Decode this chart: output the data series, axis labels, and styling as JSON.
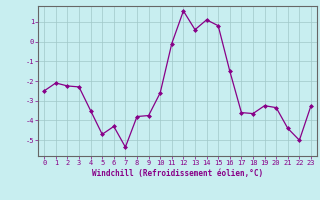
{
  "x": [
    0,
    1,
    2,
    3,
    4,
    5,
    6,
    7,
    8,
    9,
    10,
    11,
    12,
    13,
    14,
    15,
    16,
    17,
    18,
    19,
    20,
    21,
    22,
    23
  ],
  "y": [
    -2.5,
    -2.1,
    -2.25,
    -2.3,
    -3.5,
    -4.7,
    -4.3,
    -5.35,
    -3.8,
    -3.75,
    -2.6,
    -0.1,
    1.55,
    0.6,
    1.1,
    0.8,
    -1.5,
    -3.6,
    -3.65,
    -3.25,
    -3.35,
    -4.4,
    -5.0,
    -3.25
  ],
  "line_color": "#880088",
  "marker": "D",
  "marker_size": 2.0,
  "line_width": 0.9,
  "background_color": "#c8eef0",
  "grid_color": "#a0c8c8",
  "xlabel": "Windchill (Refroidissement éolien,°C)",
  "xlabel_color": "#880088",
  "tick_color": "#880088",
  "ylim": [
    -5.8,
    1.8
  ],
  "yticks": [
    -5,
    -4,
    -3,
    -2,
    -1,
    0,
    1
  ],
  "xticks": [
    0,
    1,
    2,
    3,
    4,
    5,
    6,
    7,
    8,
    9,
    10,
    11,
    12,
    13,
    14,
    15,
    16,
    17,
    18,
    19,
    20,
    21,
    22,
    23
  ],
  "spine_color": "#666666",
  "xlim": [
    -0.5,
    23.5
  ]
}
